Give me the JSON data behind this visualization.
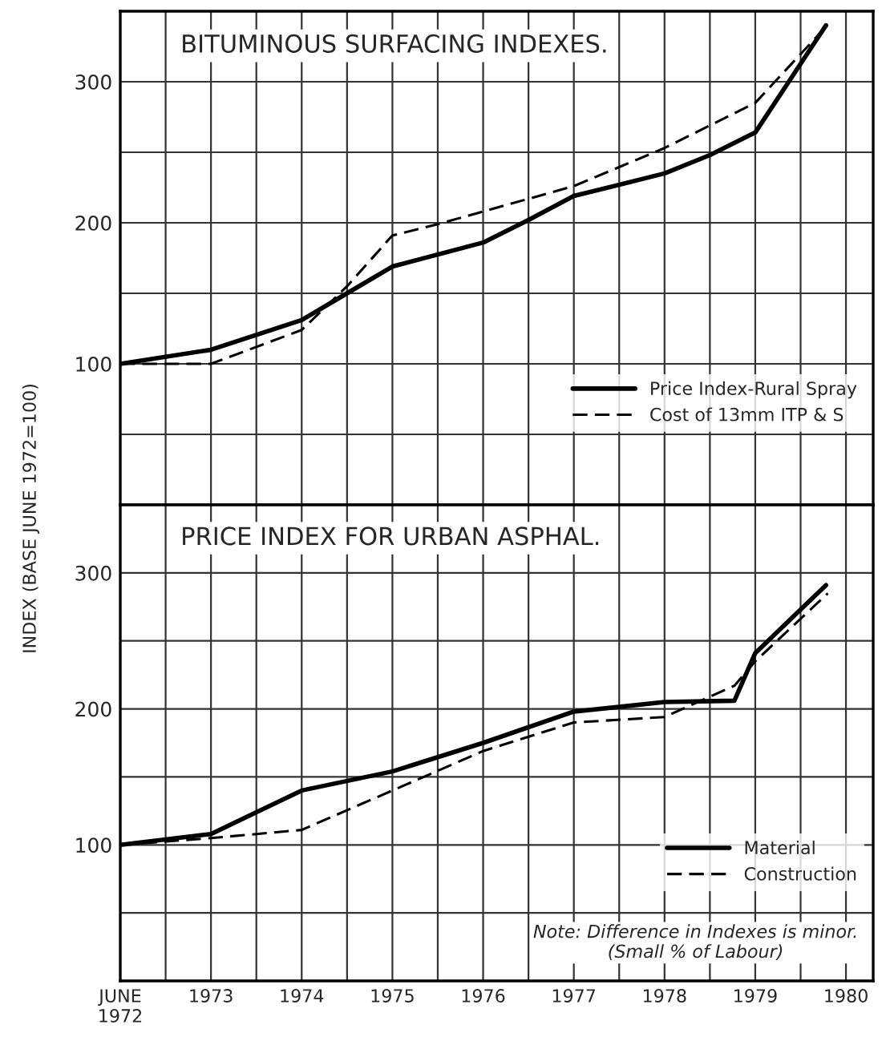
{
  "chart_data": [
    {
      "type": "line",
      "title": "BITUMINOUS SURFACING INDEXES.",
      "ylabel": "INDEX (BASE JUNE 1972=100)",
      "xlim": [
        1972,
        1980.3
      ],
      "xticks": [
        {
          "value": 1972,
          "label": null
        },
        {
          "value": 1972.5,
          "label": null
        },
        {
          "value": 1973,
          "label": null
        },
        {
          "value": 1973.5,
          "label": null
        },
        {
          "value": 1974,
          "label": null
        },
        {
          "value": 1974.5,
          "label": null
        },
        {
          "value": 1975,
          "label": null
        },
        {
          "value": 1975.5,
          "label": null
        },
        {
          "value": 1976,
          "label": null
        },
        {
          "value": 1976.5,
          "label": null
        },
        {
          "value": 1977,
          "label": null
        },
        {
          "value": 1977.5,
          "label": null
        },
        {
          "value": 1978,
          "label": null
        },
        {
          "value": 1978.5,
          "label": null
        },
        {
          "value": 1979,
          "label": null
        },
        {
          "value": 1979.5,
          "label": null
        },
        {
          "value": 1980,
          "label": null
        }
      ],
      "ylim": [
        0,
        350
      ],
      "yticks": [
        {
          "value": 50,
          "label": null
        },
        100,
        {
          "value": 150,
          "label": null
        },
        200,
        {
          "value": 250,
          "label": null
        },
        300
      ],
      "tick_labels": "y",
      "grid": true,
      "legend": "lower right",
      "series": [
        {
          "name": "Price Index-Rural Spray",
          "color": "#000000",
          "line_style": "solid",
          "x": [
            1972,
            1973,
            1974,
            1974.5,
            1975,
            1976,
            1976.5,
            1977,
            1978,
            1978.5,
            1979,
            1979.78
          ],
          "values": [
            100,
            110,
            131,
            150,
            169,
            186,
            202,
            219,
            235,
            248,
            264,
            340
          ]
        },
        {
          "name": "Cost of 13mm ITP & S",
          "color": "#000000",
          "line_style": "dashed",
          "x": [
            1972,
            1973,
            1974,
            1974.5,
            1975,
            1975.5,
            1976,
            1977,
            1978,
            1979,
            1979.78
          ],
          "values": [
            100,
            100,
            124,
            155,
            191,
            199,
            208,
            226,
            253,
            285,
            339
          ]
        }
      ]
    },
    {
      "type": "line",
      "title": "PRICE INDEX FOR URBAN ASPHAL.",
      "xlim": [
        1972,
        1980.3
      ],
      "xticks": [
        {
          "value": 1972,
          "label": "JUNE\n1972"
        },
        {
          "value": 1972.5,
          "label": null
        },
        {
          "value": 1973,
          "label": "1973"
        },
        {
          "value": 1973.5,
          "label": null
        },
        {
          "value": 1974,
          "label": "1974"
        },
        {
          "value": 1974.5,
          "label": null
        },
        {
          "value": 1975,
          "label": "1975"
        },
        {
          "value": 1975.5,
          "label": null
        },
        {
          "value": 1976,
          "label": "1976"
        },
        {
          "value": 1976.5,
          "label": null
        },
        {
          "value": 1977,
          "label": "1977"
        },
        {
          "value": 1977.5,
          "label": null
        },
        {
          "value": 1978,
          "label": "1978"
        },
        {
          "value": 1978.5,
          "label": null
        },
        {
          "value": 1979,
          "label": "1979"
        },
        {
          "value": 1979.5,
          "label": null
        },
        {
          "value": 1980,
          "label": "1980"
        }
      ],
      "ylim": [
        0,
        350
      ],
      "yticks": [
        {
          "value": 50,
          "label": null
        },
        100,
        {
          "value": 150,
          "label": null
        },
        200,
        {
          "value": 250,
          "label": null
        },
        300
      ],
      "grid": true,
      "legend": "lower right",
      "annotations": [
        "Note: Difference in Indexes is minor.\n(Small % of Labour)"
      ],
      "series": [
        {
          "name": "Material",
          "color": "#000000",
          "line_style": "solid",
          "x": [
            1972,
            1973,
            1974,
            1975,
            1976,
            1977,
            1978,
            1978.77,
            1979,
            1979.78
          ],
          "values": [
            100,
            108,
            140,
            154,
            175,
            198,
            205,
            206,
            241,
            291
          ]
        },
        {
          "name": "Construction",
          "color": "#000000",
          "line_style": "dashed",
          "x": [
            1972,
            1973,
            1974,
            1975,
            1976,
            1977,
            1978,
            1978.77,
            1979,
            1979.8
          ],
          "values": [
            100,
            105,
            111,
            140,
            169,
            190,
            194,
            217,
            235,
            285
          ]
        }
      ]
    }
  ]
}
